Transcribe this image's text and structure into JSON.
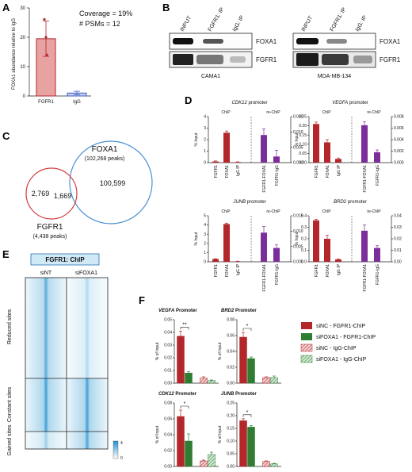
{
  "panels": {
    "A": "A",
    "B": "B",
    "C": "C",
    "D": "D",
    "E": "E",
    "F": "F"
  },
  "colors": {
    "red": "#b3262a",
    "green": "#2e7d32",
    "purple": "#7b2d9a",
    "blue": "#3c5fbf",
    "lightred": "#e8a2a2"
  },
  "panelA": {
    "ylabel": "FOXA1 abundance relative to IgG",
    "note1": "Coverage = 19%",
    "note2": "# PSMs = 12",
    "chart_data": {
      "type": "bar",
      "categories": [
        "FGFR1",
        "IgG"
      ],
      "values": [
        19.5,
        1
      ],
      "errors": [
        6,
        0.6
      ],
      "ylim": [
        0,
        30
      ],
      "yticks": [
        0,
        10,
        20,
        30
      ]
    }
  },
  "panelB": {
    "lanes": [
      "INPUT",
      "FGFR1: IP",
      "IgG: IP"
    ],
    "rows": [
      "FOXA1",
      "FGFR1"
    ],
    "cells": [
      "CAMA1",
      "MDA-MB-134"
    ]
  },
  "panelC": {
    "foxa1_label": "FOXA1",
    "foxa1_peaks": "(102,268 peaks)",
    "fgfr1_label": "FGFR1",
    "fgfr1_peaks": "(4,438 peaks)",
    "only_fgfr1": "2,769",
    "overlap": "1,669",
    "only_foxa1": "100,599"
  },
  "panelD": {
    "ylabel": "% Input",
    "chip_label": "ChIP",
    "rechip_label": "re-ChIP",
    "chart_data": [
      {
        "type": "bar",
        "title": "CDK12 promoter",
        "promoter_name": "CDK12",
        "categories": [
          "FGFR1",
          "FOXA1",
          "IgG IP"
        ],
        "values": [
          0.1,
          2.6,
          0.05
        ],
        "errors": [
          0.05,
          0.15,
          0.02
        ],
        "ylim": [
          0,
          4
        ],
        "yticks": [
          "0",
          "1",
          "2",
          "3",
          "4"
        ],
        "re_categories": [
          "FGFR1-FOXA1",
          "FGFR1-IgG"
        ],
        "re_values": [
          0.009,
          0.002
        ],
        "re_errors": [
          0.002,
          0.002
        ],
        "re_ylim": [
          0,
          0.015
        ],
        "re_yticks": [
          "0.000",
          "0.005",
          "0.010",
          "0.015"
        ]
      },
      {
        "type": "bar",
        "title": "VEGFA promoter",
        "promoter_name": "VEGFA",
        "categories": [
          "FGFR1",
          "FOXA1",
          "IgG IP"
        ],
        "values": [
          0.21,
          0.11,
          0.02
        ],
        "errors": [
          0.01,
          0.015,
          0.005
        ],
        "ylim": [
          0,
          0.25
        ],
        "yticks": [
          "0.00",
          "0.05",
          "0.10",
          "0.15",
          "0.20",
          "0.25"
        ],
        "re_categories": [
          "FGFR1-FOXA1",
          "FGFR1-IgG"
        ],
        "re_values": [
          0.0065,
          0.0018
        ],
        "re_errors": [
          0.0006,
          0.0004
        ],
        "re_ylim": [
          0,
          0.008
        ],
        "re_yticks": [
          "0.000",
          "0.002",
          "0.004",
          "0.006",
          "0.008"
        ]
      },
      {
        "type": "bar",
        "title": "JUNB promoter",
        "promoter_name": "JUNB",
        "categories": [
          "FGFR1",
          "FOXA1",
          "IgG IP"
        ],
        "values": [
          0.3,
          4.1,
          0.05
        ],
        "errors": [
          0.03,
          0.1,
          0.02
        ],
        "ylim": [
          0,
          5
        ],
        "yticks": [
          "0",
          "1",
          "2",
          "3",
          "4",
          "5"
        ],
        "re_categories": [
          "FGFR1-FOXA1",
          "FGFR1-IgG"
        ],
        "re_values": [
          0.0095,
          0.0045
        ],
        "re_errors": [
          0.002,
          0.001
        ],
        "re_ylim": [
          0,
          0.015
        ],
        "re_yticks": [
          "0.000",
          "0.005",
          "0.010",
          "0.015"
        ]
      },
      {
        "type": "bar",
        "title": "BRD2 promoter",
        "promoter_name": "BRD2",
        "categories": [
          "FGFR1",
          "FOXA1",
          "IgG IP"
        ],
        "values": [
          0.36,
          0.2,
          0.02
        ],
        "errors": [
          0.01,
          0.03,
          0.005
        ],
        "ylim": [
          0,
          0.4
        ],
        "yticks": [
          "0.0",
          "0.1",
          "0.2",
          "0.3",
          "0.4"
        ],
        "re_categories": [
          "FGFR1-FOXA1",
          "FGFR1-IgG"
        ],
        "re_values": [
          0.027,
          0.012
        ],
        "re_errors": [
          0.005,
          0.002
        ],
        "re_ylim": [
          0,
          0.04
        ],
        "re_yticks": [
          "0.00",
          "0.01",
          "0.02",
          "0.03",
          "0.04"
        ]
      }
    ]
  },
  "panelE": {
    "header": "FGFR1: ChIP",
    "col1": "siNT",
    "col2": "siFOXA1",
    "groups": [
      "Reduced sites",
      "Constant sites",
      "Gained sites"
    ],
    "scale_max": "4",
    "scale_min": "0"
  },
  "panelF": {
    "ylabel": "% of Input",
    "legend": [
      "siNC - FGFR1-ChIP",
      "siFOXA1 - FGFR1-ChIP",
      "siNC - IgG-ChIP",
      "siFOXA1 - IgG-ChIP"
    ],
    "chart_data": [
      {
        "type": "bar",
        "title": "VEGFA Promoter",
        "promoter_name": "VEGFA",
        "sig": "**",
        "values": [
          0.037,
          0.008,
          0.004,
          0.002
        ],
        "errors": [
          0.004,
          0.001,
          0.001,
          0.0005
        ],
        "ylim": [
          0,
          0.05
        ],
        "yticks": [
          "0.00",
          "0.01",
          "0.02",
          "0.03",
          "0.04",
          "0.05"
        ]
      },
      {
        "type": "bar",
        "title": "BRD2 Promoter",
        "promoter_name": "BRD2",
        "sig": "*",
        "values": [
          0.058,
          0.031,
          0.007,
          0.007
        ],
        "errors": [
          0.006,
          0.002,
          0.001,
          0.002
        ],
        "ylim": [
          0,
          0.08
        ],
        "yticks": [
          "0.00",
          "0.02",
          "0.04",
          "0.06",
          "0.08"
        ]
      },
      {
        "type": "bar",
        "title": "CDK12 Promoter",
        "promoter_name": "CDK12",
        "sig": "*",
        "values": [
          0.063,
          0.032,
          0.007,
          0.015
        ],
        "errors": [
          0.008,
          0.009,
          0.001,
          0.003
        ],
        "ylim": [
          0,
          0.08
        ],
        "yticks": [
          "0.00",
          "0.02",
          "0.04",
          "0.06",
          "0.08"
        ]
      },
      {
        "type": "bar",
        "title": "JUNB Promoter",
        "promoter_name": "JUNB",
        "sig": "*",
        "values": [
          0.18,
          0.155,
          0.02,
          0.01
        ],
        "errors": [
          0.008,
          0.006,
          0.002,
          0.002
        ],
        "ylim": [
          0,
          0.25
        ],
        "yticks": [
          "0.00",
          "0.05",
          "0.10",
          "0.15",
          "0.20",
          "0.25"
        ]
      }
    ]
  }
}
